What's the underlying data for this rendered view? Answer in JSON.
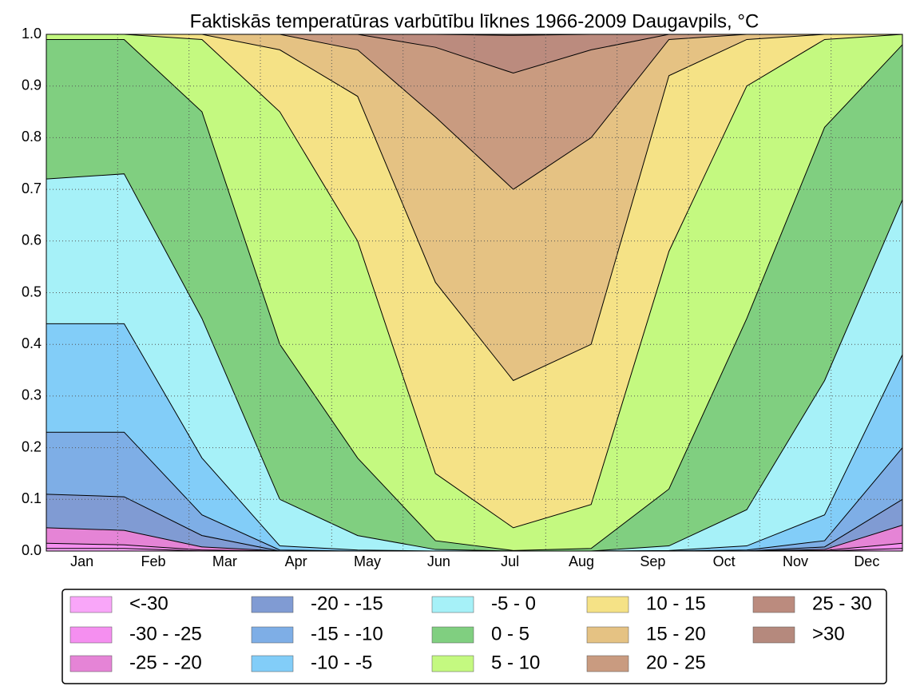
{
  "chart_data": {
    "type": "stacked_area",
    "title": "Faktiskās temperatūras varbūtību līknes 1966-2009 Daugavpils, °C",
    "categories": [
      "Jan",
      "Feb",
      "Mar",
      "Apr",
      "May",
      "Jun",
      "Jul",
      "Aug",
      "Sep",
      "Oct",
      "Nov",
      "Dec"
    ],
    "ylim": [
      0,
      1
    ],
    "yticks": [
      {
        "value": 0,
        "label": "0.0"
      },
      0.1,
      0.2,
      0.3,
      0.4,
      0.5,
      0.6,
      0.7,
      0.8,
      0.9,
      {
        "value": 1,
        "label": "1.0"
      }
    ],
    "grid": true,
    "series": [
      {
        "name": "<-30",
        "color": "#f9a6f9",
        "values": [
          0.005,
          0.005,
          0,
          0,
          0,
          0,
          0,
          0,
          0,
          0,
          0,
          0.005
        ]
      },
      {
        "name": "-30 - -25",
        "color": "#f58ff0",
        "values": [
          0.01,
          0.007,
          0.002,
          0,
          0,
          0,
          0,
          0,
          0,
          0,
          0.001,
          0.01
        ]
      },
      {
        "name": "-25 - -20",
        "color": "#e584d6",
        "values": [
          0.03,
          0.028,
          0.006,
          0,
          0,
          0,
          0,
          0,
          0,
          0,
          0.002,
          0.035
        ]
      },
      {
        "name": "-20 - -15",
        "color": "#809bd3",
        "values": [
          0.065,
          0.065,
          0.022,
          0,
          0,
          0,
          0,
          0,
          0,
          0,
          0.005,
          0.05
        ]
      },
      {
        "name": "-15 - -10",
        "color": "#7eaee6",
        "values": [
          0.12,
          0.125,
          0.04,
          0.002,
          0,
          0,
          0,
          0,
          0,
          0.002,
          0.012,
          0.1
        ]
      },
      {
        "name": "-10 - -5",
        "color": "#82cdf8",
        "values": [
          0.21,
          0.21,
          0.11,
          0.008,
          0.002,
          0,
          0,
          0,
          0.001,
          0.008,
          0.05,
          0.18
        ]
      },
      {
        "name": "-5 - 0",
        "color": "#a6f1f8",
        "values": [
          0.28,
          0.29,
          0.27,
          0.09,
          0.028,
          0.003,
          0,
          0,
          0.009,
          0.07,
          0.26,
          0.3
        ]
      },
      {
        "name": "0 - 5",
        "color": "#80cf80",
        "values": [
          0.27,
          0.26,
          0.4,
          0.3,
          0.15,
          0.017,
          0.001,
          0.005,
          0.11,
          0.37,
          0.49,
          0.3
        ]
      },
      {
        "name": "5 - 10",
        "color": "#c4f980",
        "values": [
          0.01,
          0.01,
          0.14,
          0.45,
          0.42,
          0.13,
          0.044,
          0.085,
          0.46,
          0.45,
          0.17,
          0.02
        ]
      },
      {
        "name": "10 - 15",
        "color": "#f5e286",
        "values": [
          0,
          0,
          0.01,
          0.12,
          0.28,
          0.37,
          0.285,
          0.31,
          0.34,
          0.09,
          0.01,
          0
        ]
      },
      {
        "name": "15 - 20",
        "color": "#e5c283",
        "values": [
          0,
          0,
          0,
          0.03,
          0.09,
          0.32,
          0.37,
          0.4,
          0.07,
          0.01,
          0,
          0
        ]
      },
      {
        "name": "20 - 25",
        "color": "#c99b80",
        "values": [
          0,
          0,
          0,
          0,
          0.03,
          0.135,
          0.225,
          0.17,
          0.01,
          0,
          0,
          0
        ]
      },
      {
        "name": "25 - 30",
        "color": "#bb8b7e",
        "values": [
          0,
          0,
          0,
          0,
          0,
          0.025,
          0.073,
          0.03,
          0,
          0,
          0,
          0
        ]
      },
      {
        "name": ">30",
        "color": "#b5897d",
        "values": [
          0,
          0,
          0,
          0,
          0,
          0,
          0.002,
          0,
          0,
          0,
          0,
          0
        ]
      }
    ]
  }
}
